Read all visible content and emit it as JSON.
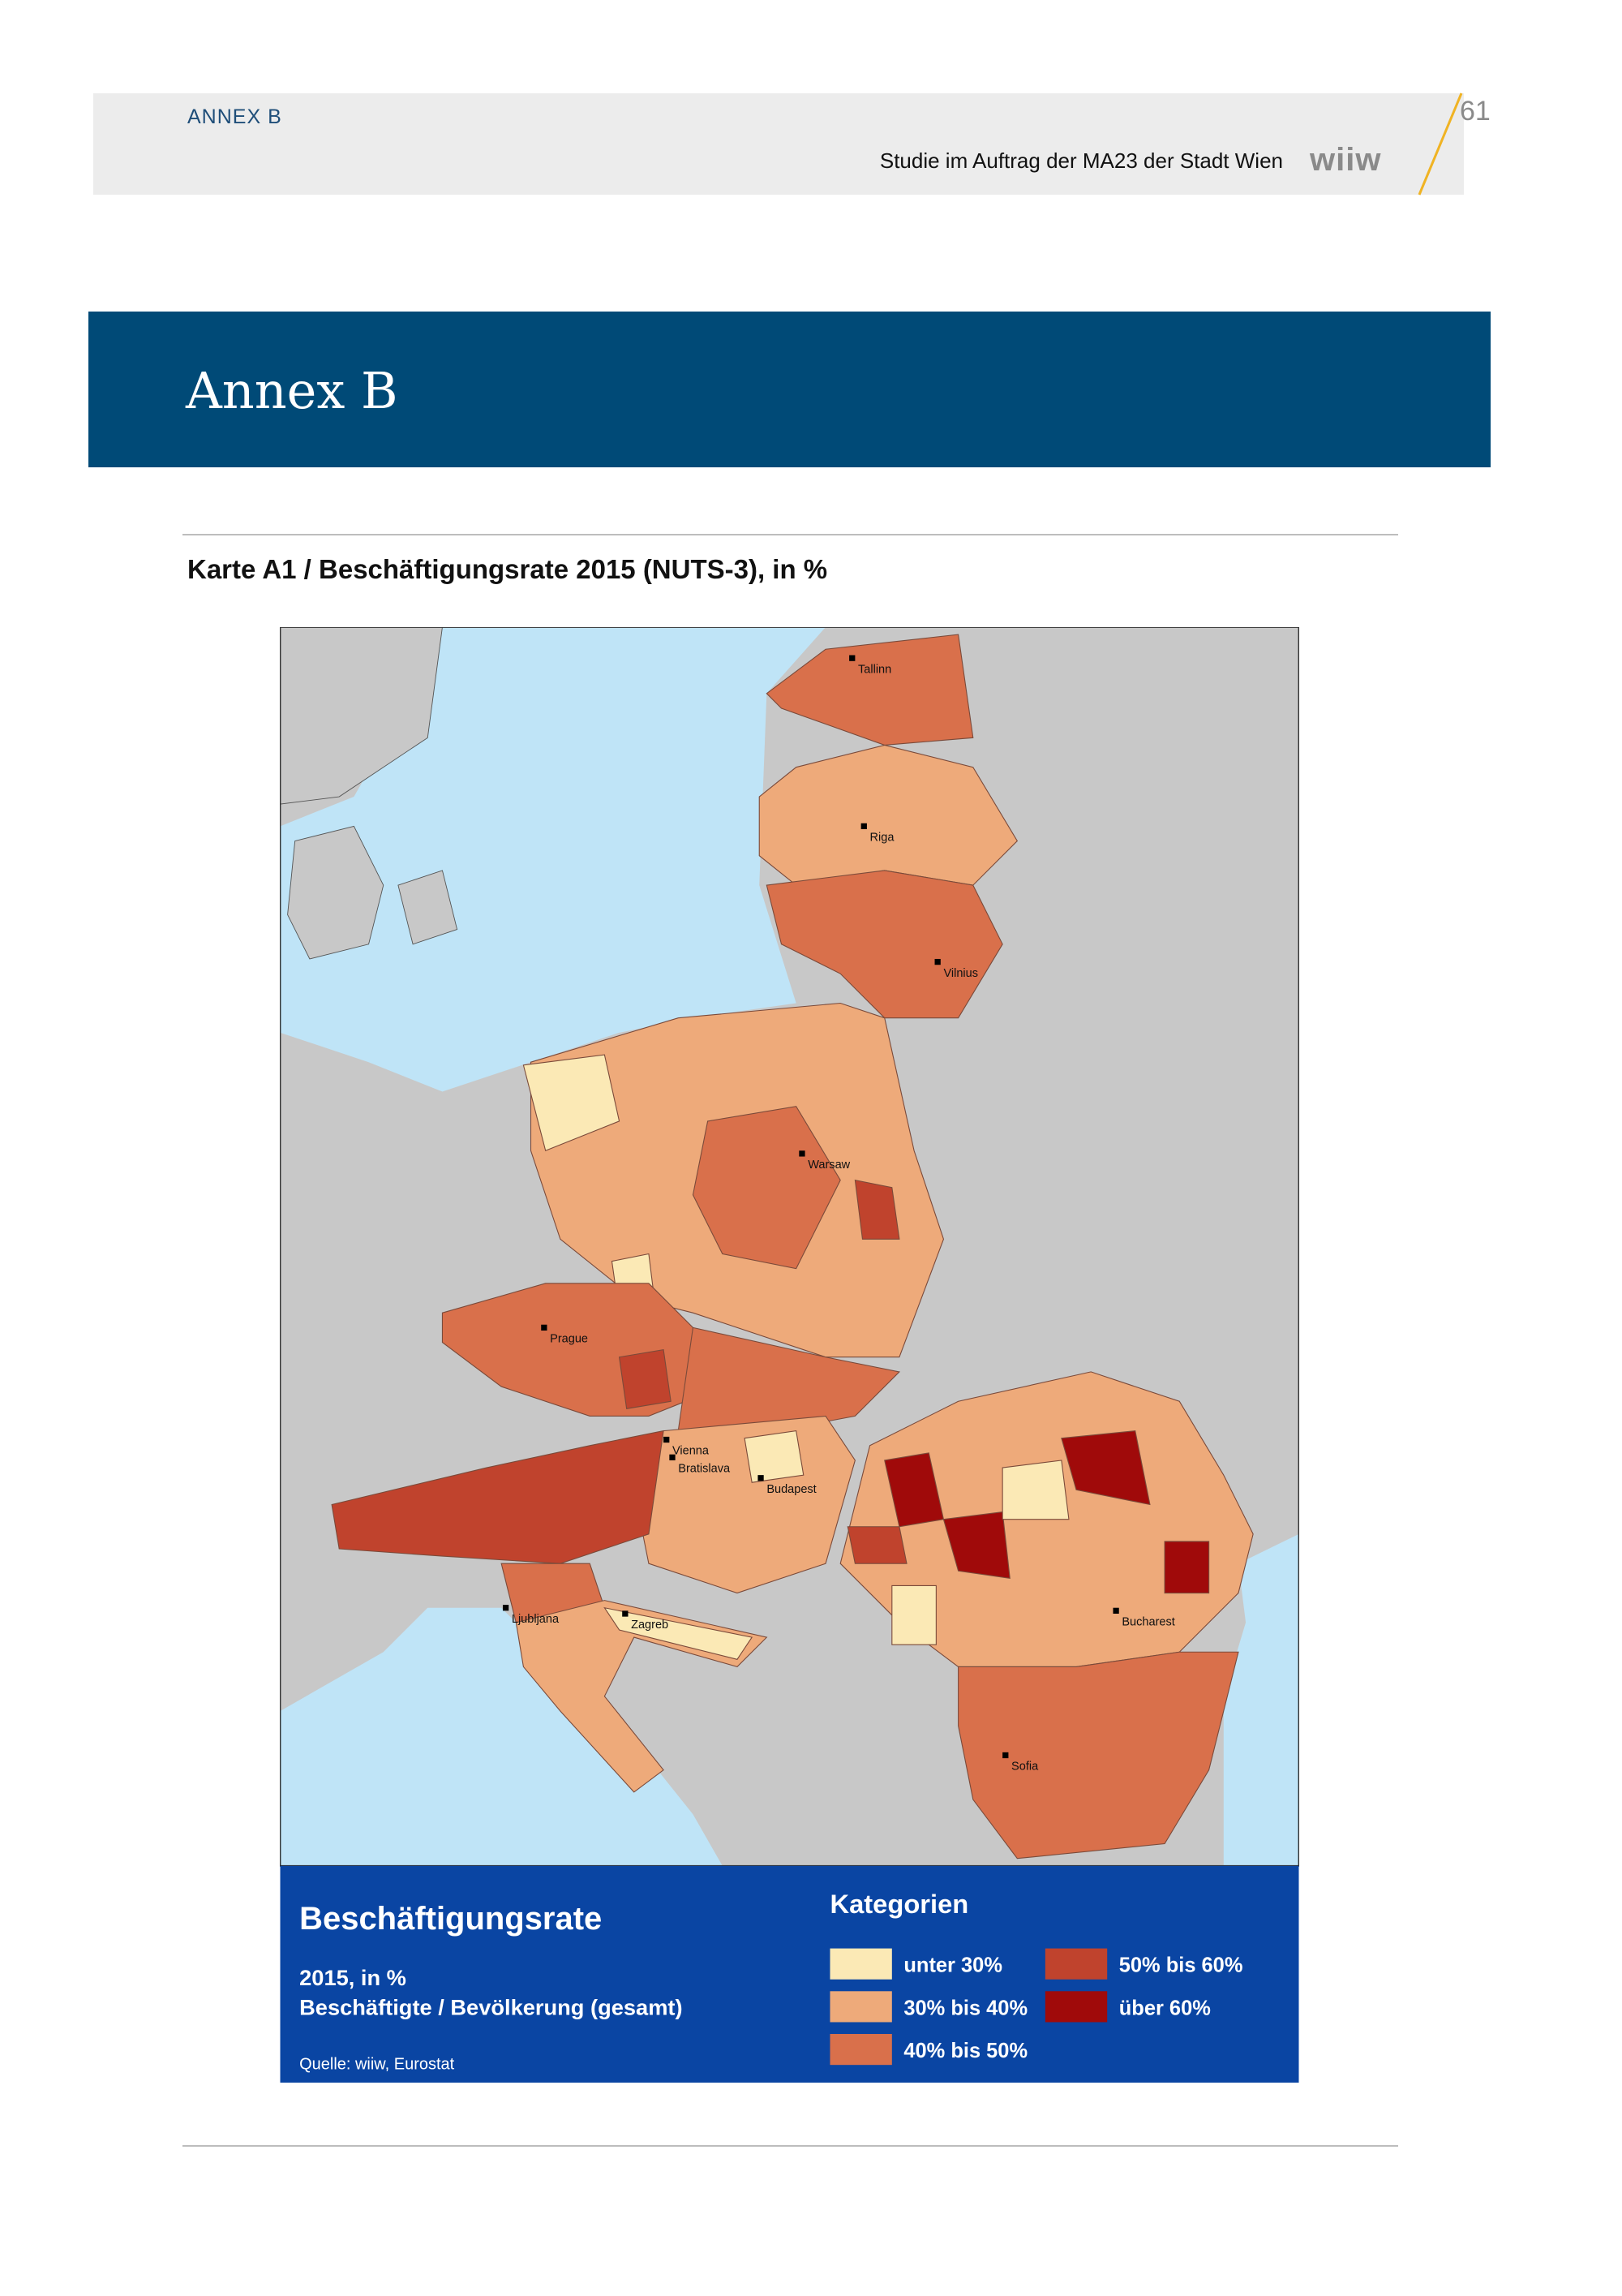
{
  "header": {
    "section": "ANNEX B",
    "subtitle": "Studie im Auftrag der MA23 der Stadt Wien",
    "logo": "wiiw",
    "page_number": "61"
  },
  "banner": {
    "title": "Annex B"
  },
  "figure": {
    "title": "Karte A1 / Beschäftigungsrate 2015 (NUTS-3), in %",
    "cities": [
      "Tallinn",
      "Riga",
      "Vilnius",
      "Warsaw",
      "Prague",
      "Vienna",
      "Bratislava",
      "Budapest",
      "Ljubljana",
      "Zagreb",
      "Bucharest",
      "Sofia"
    ],
    "legend": {
      "title": "Beschäftigungsrate",
      "line1": "2015, in %",
      "line2": "Beschäftigte / Bevölkerung (gesamt)",
      "source": "Quelle: wiiw, Eurostat",
      "heading": "Kategorien",
      "categories": [
        "unter 30%",
        "30% bis 40%",
        "40% bis 50%",
        "50% bis 60%",
        "über 60%"
      ]
    }
  }
}
